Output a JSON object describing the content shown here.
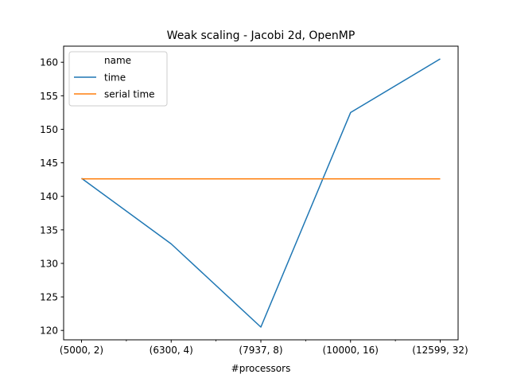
{
  "chart_data": {
    "type": "line",
    "title": "Weak scaling - Jacobi 2d, OpenMP",
    "xlabel": "#processors",
    "ylabel": "",
    "categories": [
      "(5000, 2)",
      "(6300, 4)",
      "(7937, 8)",
      "(10000, 16)",
      "(12599, 32)"
    ],
    "series": [
      {
        "name": "time",
        "color": "#1f77b4",
        "values": [
          142.7,
          132.9,
          120.5,
          152.5,
          160.5
        ]
      },
      {
        "name": "serial time",
        "color": "#ff7f0e",
        "values": [
          142.6,
          142.6,
          142.6,
          142.6,
          142.6
        ]
      }
    ],
    "ylim": [
      118.6,
      162.4
    ],
    "yticks": [
      120,
      125,
      130,
      135,
      140,
      145,
      150,
      155,
      160
    ],
    "legend": {
      "title": "name",
      "location": "top-left"
    },
    "grid": false
  }
}
